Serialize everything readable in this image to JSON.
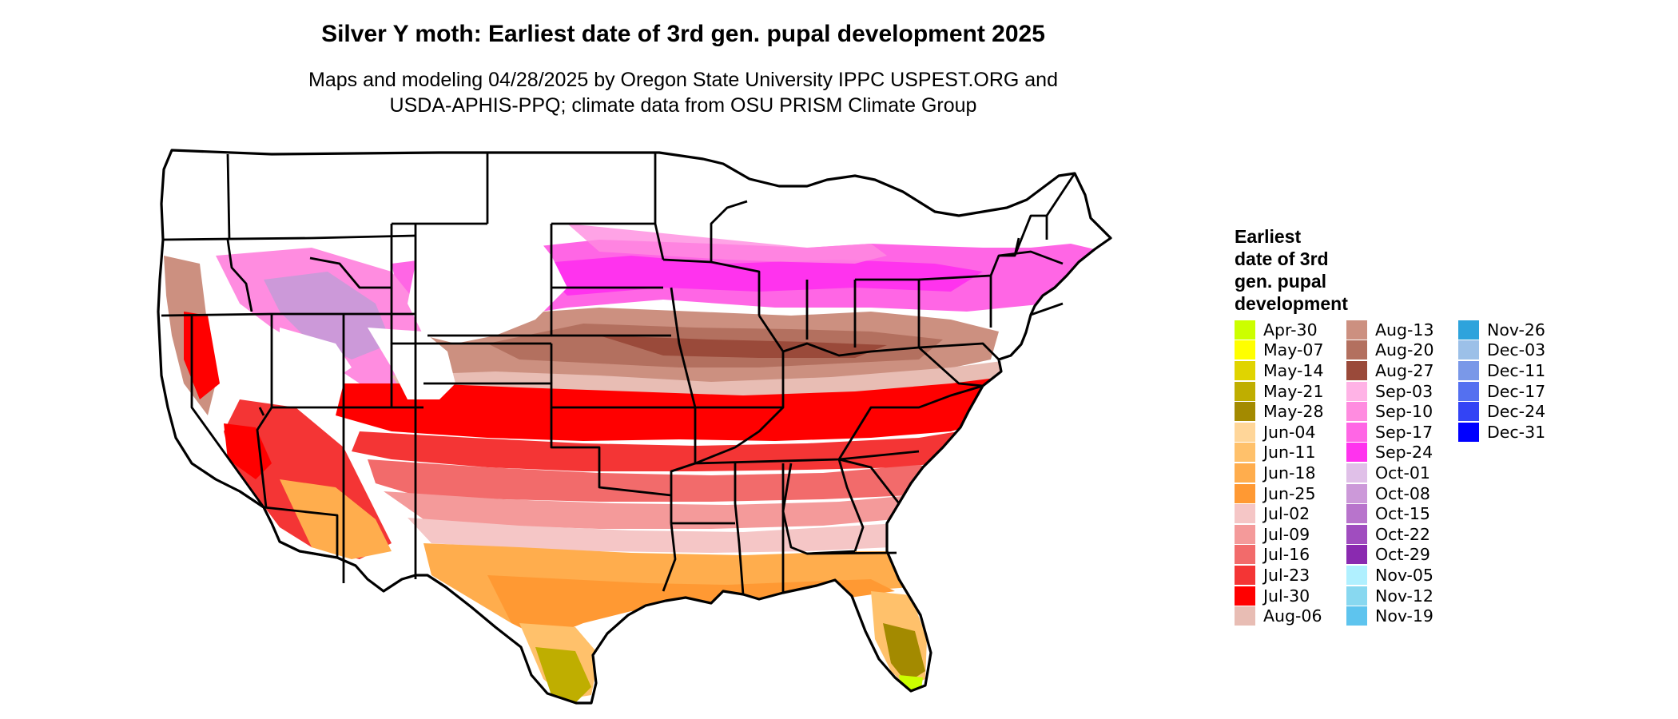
{
  "map": {
    "title": "Silver Y moth: Earliest date of 3rd gen. pupal development 2025",
    "subtitle_lines": [
      "Maps and modeling 04/28/2025 by Oregon State University IPPC USPEST.ORG and",
      "USDA-APHIS-PPQ; climate data from OSU PRISM Climate Group"
    ]
  },
  "legend": {
    "title_lines": [
      "Earliest",
      "date of 3rd",
      "gen. pupal",
      "development"
    ],
    "columns": [
      [
        {
          "label": "Apr-30",
          "color": "#ccff00"
        },
        {
          "label": "May-07",
          "color": "#ffff00"
        },
        {
          "label": "May-14",
          "color": "#e0d400"
        },
        {
          "label": "May-21",
          "color": "#bfae00"
        },
        {
          "label": "May-28",
          "color": "#a38a00"
        },
        {
          "label": "Jun-04",
          "color": "#ffd699"
        },
        {
          "label": "Jun-11",
          "color": "#ffc16b"
        },
        {
          "label": "Jun-18",
          "color": "#ffad4d"
        },
        {
          "label": "Jun-25",
          "color": "#ff9933"
        },
        {
          "label": "Jul-02",
          "color": "#f5c6c6"
        },
        {
          "label": "Jul-09",
          "color": "#f49a9a"
        },
        {
          "label": "Jul-16",
          "color": "#f26b6b"
        },
        {
          "label": "Jul-23",
          "color": "#f43535"
        },
        {
          "label": "Jul-30",
          "color": "#ff0000"
        },
        {
          "label": "Aug-06",
          "color": "#e8bdb4"
        }
      ],
      [
        {
          "label": "Aug-13",
          "color": "#cc9080"
        },
        {
          "label": "Aug-20",
          "color": "#b3705f"
        },
        {
          "label": "Aug-27",
          "color": "#9a4a3a"
        },
        {
          "label": "Sep-03",
          "color": "#ffb3e6"
        },
        {
          "label": "Sep-10",
          "color": "#ff8ce0"
        },
        {
          "label": "Sep-17",
          "color": "#ff66e5"
        },
        {
          "label": "Sep-24",
          "color": "#ff33ee"
        },
        {
          "label": "Oct-01",
          "color": "#e0c0e8"
        },
        {
          "label": "Oct-08",
          "color": "#cc99d9"
        },
        {
          "label": "Oct-15",
          "color": "#b874cc"
        },
        {
          "label": "Oct-22",
          "color": "#a04dbf"
        },
        {
          "label": "Oct-29",
          "color": "#8a2ab0"
        },
        {
          "label": "Nov-05",
          "color": "#b0f0ff"
        },
        {
          "label": "Nov-12",
          "color": "#88d8f0"
        },
        {
          "label": "Nov-19",
          "color": "#5ec4ee"
        }
      ],
      [
        {
          "label": "Nov-26",
          "color": "#2ea3dc"
        },
        {
          "label": "Dec-03",
          "color": "#9cc0e8"
        },
        {
          "label": "Dec-11",
          "color": "#7a98e8"
        },
        {
          "label": "Dec-17",
          "color": "#5470f0"
        },
        {
          "label": "Dec-24",
          "color": "#3344f5"
        },
        {
          "label": "Dec-31",
          "color": "#0000ff"
        }
      ]
    ]
  }
}
